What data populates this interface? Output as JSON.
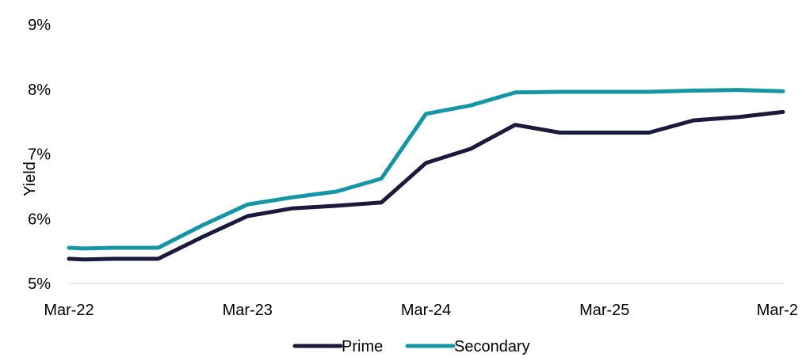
{
  "chart_data": {
    "type": "line",
    "title": "",
    "xlabel": "",
    "ylabel": "Yield",
    "x_tick_labels": [
      "Mar-22",
      "Mar-23",
      "Mar-24",
      "Mar-25",
      "Mar-2"
    ],
    "x_tick_dates": [
      "2022-03",
      "2023-03",
      "2024-03",
      "2025-03",
      "2026-03"
    ],
    "y_tick_labels": [
      "5%",
      "6%",
      "7%",
      "8%",
      "9%"
    ],
    "ylim": [
      5,
      9
    ],
    "x_range": [
      "2022-03",
      "2026-03"
    ],
    "grid": false,
    "legend_position": "bottom",
    "series": [
      {
        "name": "Prime",
        "color": "#1b1a3c",
        "points": [
          [
            "2022-03",
            5.38
          ],
          [
            "2022-04",
            5.37
          ],
          [
            "2022-06",
            5.38
          ],
          [
            "2022-09",
            5.38
          ],
          [
            "2022-12",
            5.72
          ],
          [
            "2023-03",
            6.04
          ],
          [
            "2023-06",
            6.16
          ],
          [
            "2023-09",
            6.2
          ],
          [
            "2023-12",
            6.25
          ],
          [
            "2024-03",
            6.86
          ],
          [
            "2024-06",
            7.08
          ],
          [
            "2024-09",
            7.45
          ],
          [
            "2024-12",
            7.33
          ],
          [
            "2025-03",
            7.33
          ],
          [
            "2025-06",
            7.33
          ],
          [
            "2025-09",
            7.52
          ],
          [
            "2025-12",
            7.57
          ],
          [
            "2026-03",
            7.65
          ]
        ]
      },
      {
        "name": "Secondary",
        "color": "#1496a6",
        "points": [
          [
            "2022-03",
            5.55
          ],
          [
            "2022-04",
            5.54
          ],
          [
            "2022-06",
            5.55
          ],
          [
            "2022-09",
            5.55
          ],
          [
            "2022-12",
            5.9
          ],
          [
            "2023-03",
            6.22
          ],
          [
            "2023-06",
            6.33
          ],
          [
            "2023-09",
            6.42
          ],
          [
            "2023-12",
            6.62
          ],
          [
            "2024-03",
            7.62
          ],
          [
            "2024-06",
            7.75
          ],
          [
            "2024-09",
            7.95
          ],
          [
            "2024-12",
            7.96
          ],
          [
            "2025-03",
            7.96
          ],
          [
            "2025-06",
            7.96
          ],
          [
            "2025-09",
            7.98
          ],
          [
            "2025-12",
            7.99
          ],
          [
            "2026-03",
            7.97
          ]
        ]
      }
    ]
  }
}
